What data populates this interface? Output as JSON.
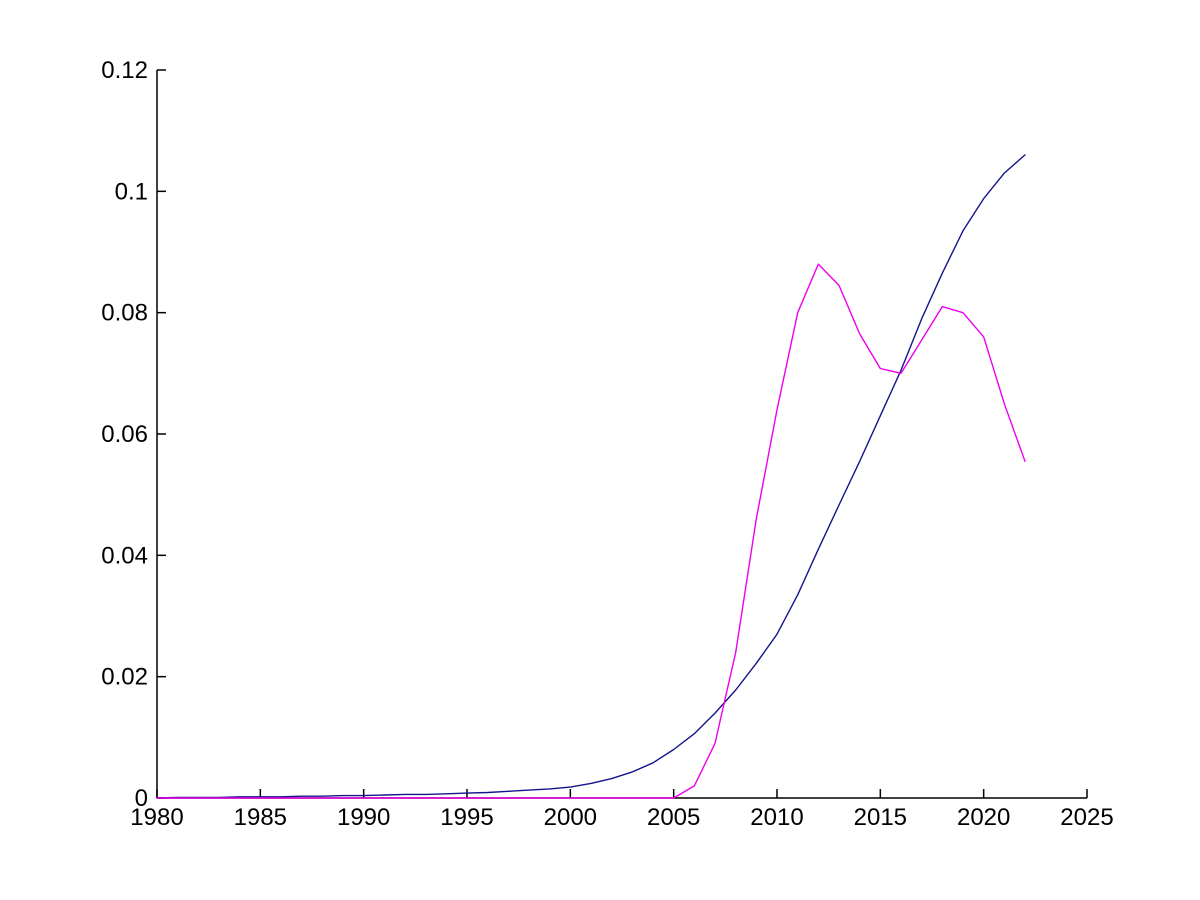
{
  "figure": {
    "title": "",
    "background_color": "#ffffff",
    "axis_color": "#000000"
  },
  "chart_data": {
    "type": "line",
    "title": "",
    "xlabel": "",
    "ylabel": "",
    "grid": false,
    "legend": null,
    "xlim": [
      1980,
      2025
    ],
    "ylim": [
      0,
      0.12
    ],
    "xticks": [
      1980,
      1985,
      1990,
      1995,
      2000,
      2005,
      2010,
      2015,
      2020,
      2025
    ],
    "xtick_labels": [
      "1980",
      "1985",
      "1990",
      "1995",
      "2000",
      "2005",
      "2010",
      "2015",
      "2020",
      "2025"
    ],
    "yticks": [
      0,
      0.02,
      0.04,
      0.06,
      0.08,
      0.1,
      0.12
    ],
    "ytick_labels": [
      "0",
      "0.02",
      "0.04",
      "0.06",
      "0.08",
      "0.1",
      "0.12"
    ],
    "x": [
      1980,
      1981,
      1982,
      1983,
      1984,
      1985,
      1986,
      1987,
      1988,
      1989,
      1990,
      1991,
      1992,
      1993,
      1994,
      1995,
      1996,
      1997,
      1998,
      1999,
      2000,
      2001,
      2002,
      2003,
      2004,
      2005,
      2006,
      2007,
      2008,
      2009,
      2010,
      2011,
      2012,
      2013,
      2014,
      2015,
      2016,
      2017,
      2018,
      2019,
      2020,
      2021,
      2022
    ],
    "series": [
      {
        "name": "navy-smooth-curve",
        "color": "#14148C",
        "values": [
          0.0,
          0.0001,
          0.0001,
          0.0001,
          0.0002,
          0.0002,
          0.0002,
          0.0003,
          0.0003,
          0.0004,
          0.0004,
          0.0005,
          0.0006,
          0.0006,
          0.0007,
          0.0008,
          0.0009,
          0.0011,
          0.0013,
          0.0015,
          0.0018,
          0.0024,
          0.0032,
          0.0043,
          0.0058,
          0.008,
          0.0106,
          0.014,
          0.0178,
          0.0222,
          0.027,
          0.0335,
          0.041,
          0.0483,
          0.0555,
          0.063,
          0.0705,
          0.079,
          0.0865,
          0.0935,
          0.0988,
          0.103,
          0.106
        ]
      },
      {
        "name": "magenta-double-peak-curve",
        "color": "#EE00EE",
        "values": [
          0,
          0,
          0,
          0,
          0,
          0,
          0,
          0,
          0,
          0,
          0,
          0,
          0,
          0,
          0,
          0,
          0,
          0,
          0,
          0,
          0,
          0,
          0,
          0,
          0,
          0.0,
          0.002,
          0.009,
          0.024,
          0.046,
          0.064,
          0.08,
          0.088,
          0.0845,
          0.0765,
          0.0708,
          0.07,
          0.0755,
          0.081,
          0.08,
          0.076,
          0.065,
          0.0555
        ]
      }
    ]
  }
}
